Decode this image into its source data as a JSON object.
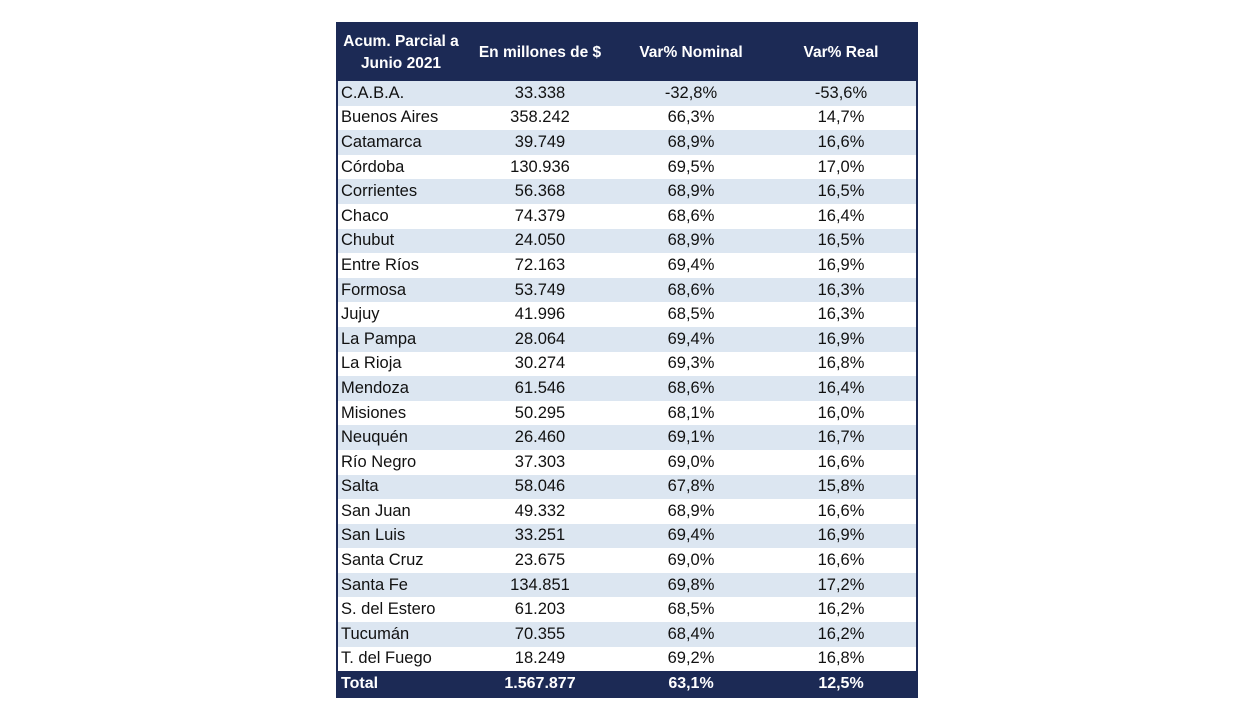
{
  "table": {
    "header": [
      "Acum. Parcial a Junio 2021",
      "En millones de $",
      "Var% Nominal",
      "Var% Real"
    ],
    "rows": [
      [
        "C.A.B.A.",
        "33.338",
        "-32,8%",
        "-53,6%"
      ],
      [
        "Buenos Aires",
        "358.242",
        "66,3%",
        "14,7%"
      ],
      [
        "Catamarca",
        "39.749",
        "68,9%",
        "16,6%"
      ],
      [
        "Córdoba",
        "130.936",
        "69,5%",
        "17,0%"
      ],
      [
        "Corrientes",
        "56.368",
        "68,9%",
        "16,5%"
      ],
      [
        "Chaco",
        "74.379",
        "68,6%",
        "16,4%"
      ],
      [
        "Chubut",
        "24.050",
        "68,9%",
        "16,5%"
      ],
      [
        "Entre Ríos",
        "72.163",
        "69,4%",
        "16,9%"
      ],
      [
        "Formosa",
        "53.749",
        "68,6%",
        "16,3%"
      ],
      [
        "Jujuy",
        "41.996",
        "68,5%",
        "16,3%"
      ],
      [
        "La Pampa",
        "28.064",
        "69,4%",
        "16,9%"
      ],
      [
        "La Rioja",
        "30.274",
        "69,3%",
        "16,8%"
      ],
      [
        "Mendoza",
        "61.546",
        "68,6%",
        "16,4%"
      ],
      [
        "Misiones",
        "50.295",
        "68,1%",
        "16,0%"
      ],
      [
        "Neuquén",
        "26.460",
        "69,1%",
        "16,7%"
      ],
      [
        "Río Negro",
        "37.303",
        "69,0%",
        "16,6%"
      ],
      [
        "Salta",
        "58.046",
        "67,8%",
        "15,8%"
      ],
      [
        "San Juan",
        "49.332",
        "68,9%",
        "16,6%"
      ],
      [
        "San Luis",
        "33.251",
        "69,4%",
        "16,9%"
      ],
      [
        "Santa Cruz",
        "23.675",
        "69,0%",
        "16,6%"
      ],
      [
        "Santa Fe",
        "134.851",
        "69,8%",
        "17,2%"
      ],
      [
        "S. del Estero",
        "61.203",
        "68,5%",
        "16,2%"
      ],
      [
        "Tucumán",
        "70.355",
        "68,4%",
        "16,2%"
      ],
      [
        "T. del Fuego",
        "18.249",
        "69,2%",
        "16,8%"
      ]
    ],
    "total": [
      "Total",
      "1.567.877",
      "63,1%",
      "12,5%"
    ]
  }
}
